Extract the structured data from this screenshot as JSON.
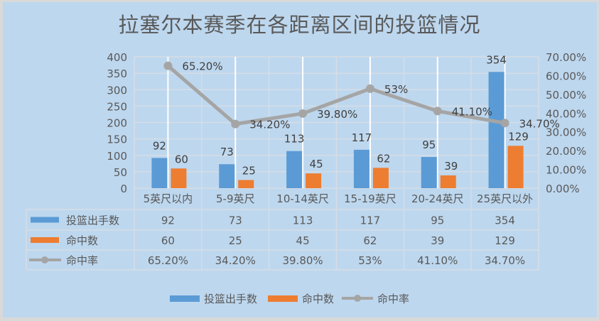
{
  "chart_data": {
    "type": "bar",
    "title": "拉塞尔本赛季在各距离区间的投篮情况",
    "categories": [
      "5英尺以内",
      "5-9英尺",
      "10-14英尺",
      "15-19英尺",
      "20-24英尺",
      "25英尺以外"
    ],
    "series": [
      {
        "name": "投篮出手数",
        "type": "bar",
        "axis": "left",
        "color": "#5b9bd5",
        "values": [
          92,
          73,
          113,
          117,
          95,
          354
        ],
        "labels": [
          "92",
          "73",
          "113",
          "117",
          "95",
          "354"
        ]
      },
      {
        "name": "命中数",
        "type": "bar",
        "axis": "left",
        "color": "#ed7d31",
        "values": [
          60,
          25,
          45,
          62,
          39,
          129
        ],
        "labels": [
          "60",
          "25",
          "45",
          "62",
          "39",
          "129"
        ]
      },
      {
        "name": "命中率",
        "type": "line",
        "axis": "right",
        "color": "#a5a5a5",
        "values": [
          65.2,
          34.2,
          39.8,
          53,
          41.1,
          34.7
        ],
        "labels": [
          "65.20%",
          "34.20%",
          "39.80%",
          "53%",
          "41.10%",
          "34.70%"
        ]
      }
    ],
    "left_axis": {
      "ticks": [
        "0",
        "50",
        "100",
        "150",
        "200",
        "250",
        "300",
        "350",
        "400"
      ],
      "ylim": [
        0,
        400
      ]
    },
    "right_axis": {
      "ticks": [
        "0.00%",
        "10.00%",
        "20.00%",
        "30.00%",
        "40.00%",
        "50.00%",
        "60.00%",
        "70.00%"
      ],
      "ylim": [
        0,
        70
      ]
    },
    "xlabel": "",
    "ylabel": "",
    "grid": true,
    "legend_position": "bottom",
    "data_table": true
  },
  "legend": {
    "items": [
      {
        "label": "投篮出手数",
        "color": "#5b9bd5",
        "kind": "bar"
      },
      {
        "label": "命中数",
        "color": "#ed7d31",
        "kind": "bar"
      },
      {
        "label": "命中率",
        "color": "#a5a5a5",
        "kind": "line"
      }
    ]
  },
  "colors": {
    "background": "#bdd7ee",
    "border": "#d9d9d9",
    "grid": "#d6dde6",
    "text": "#595959"
  }
}
